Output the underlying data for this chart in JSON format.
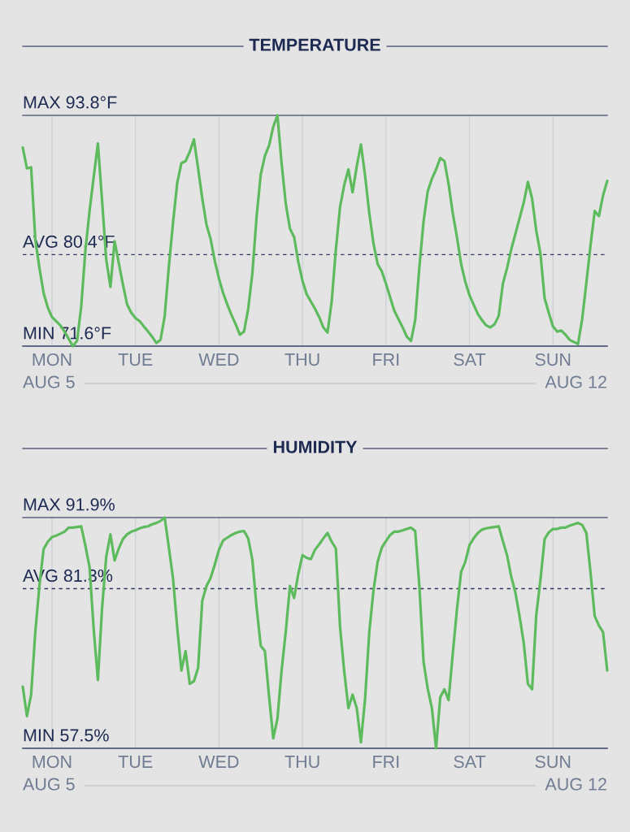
{
  "chart_data": [
    {
      "type": "line",
      "title": "TEMPERATURE",
      "categories": [
        null,
        null,
        null,
        null,
        null,
        null,
        null,
        "MON",
        null,
        null,
        null,
        null,
        null,
        null,
        null,
        null,
        null,
        null,
        null,
        null,
        null,
        null,
        null,
        null,
        null,
        null,
        null,
        "TUE",
        null,
        null,
        null,
        null,
        null,
        null,
        null,
        null,
        null,
        null,
        null,
        null,
        null,
        null,
        null,
        null,
        null,
        null,
        null,
        "WED",
        null,
        null,
        null,
        null,
        null,
        null,
        null,
        null,
        null,
        null,
        null,
        null,
        null,
        null,
        null,
        null,
        null,
        null,
        null,
        "THU",
        null,
        null,
        null,
        null,
        null,
        null,
        null,
        null,
        null,
        null,
        null,
        null,
        null,
        null,
        null,
        null,
        null,
        null,
        null,
        "FRI",
        null,
        null,
        null,
        null,
        null,
        null,
        null,
        null,
        null,
        null,
        null,
        null,
        null,
        null,
        null,
        null,
        null,
        null,
        null,
        "SAT",
        null,
        null,
        null,
        null,
        null,
        null,
        null,
        null,
        null,
        null,
        null,
        null,
        null,
        null,
        null,
        null,
        null,
        null,
        null,
        "SUN",
        null,
        null,
        null,
        null,
        null,
        null,
        null,
        null,
        null,
        null,
        null,
        null,
        null
      ],
      "series": [
        {
          "color": "#5dbb5d",
          "values": [
            90.7,
            88.7,
            88.8,
            81.9,
            79.1,
            76.7,
            75.3,
            74.4,
            74.0,
            73.6,
            73.0,
            72.3,
            71.6,
            72.1,
            75.4,
            80.8,
            84.6,
            87.9,
            91.1,
            85.6,
            79.9,
            77.3,
            81.7,
            79.6,
            77.5,
            75.6,
            74.8,
            74.3,
            74.0,
            73.5,
            73.0,
            72.5,
            71.9,
            72.2,
            74.5,
            79.3,
            83.5,
            87.3,
            89.2,
            89.4,
            90.3,
            91.5,
            88.7,
            85.8,
            83.3,
            81.9,
            79.8,
            78.1,
            76.7,
            75.6,
            74.6,
            73.7,
            72.7,
            73.0,
            75.2,
            78.6,
            84.0,
            88.1,
            89.9,
            90.9,
            92.7,
            93.8,
            89.2,
            85.3,
            82.9,
            82.1,
            79.7,
            77.9,
            76.6,
            75.9,
            75.2,
            74.4,
            73.4,
            72.9,
            75.9,
            80.9,
            85.0,
            87.1,
            88.6,
            86.4,
            88.9,
            91.0,
            88.0,
            84.4,
            81.5,
            79.5,
            78.8,
            77.6,
            76.3,
            75.0,
            74.2,
            73.4,
            72.5,
            72.1,
            74.1,
            79.2,
            83.6,
            86.5,
            87.7,
            88.6,
            89.7,
            89.4,
            87.2,
            84.4,
            82.1,
            79.5,
            77.8,
            76.5,
            75.6,
            74.7,
            74.1,
            73.6,
            73.4,
            73.7,
            74.5,
            77.6,
            79.1,
            80.9,
            82.4,
            83.9,
            85.4,
            87.4,
            85.8,
            82.7,
            80.5,
            76.2,
            74.8,
            73.5,
            73.0,
            73.1,
            72.7,
            72.2,
            72.0,
            71.8,
            74.2,
            77.7,
            81.3,
            84.6,
            84.1,
            86.1,
            87.5
          ]
        }
      ],
      "ylim": [
        71.6,
        93.8
      ],
      "ref_lines": [
        {
          "axis": "y",
          "value": 93.8,
          "label": "MAX 93.8°F",
          "line_style": "solid",
          "color": "#5a637e"
        },
        {
          "axis": "y",
          "value": 80.4,
          "label": "AVG 80.4°F",
          "line_style": "dashed",
          "color": "#2c3760"
        },
        {
          "axis": "y",
          "value": 71.6,
          "label": "MIN 71.6°F",
          "line_style": "solid",
          "color": "#5a637e"
        }
      ],
      "annotations": [
        "AUG 5",
        "AUG 12"
      ],
      "grid": "x",
      "tick_labels": "x",
      "marker": "none",
      "line_style": "solid"
    },
    {
      "type": "line",
      "title": "HUMIDITY",
      "categories": [
        null,
        null,
        null,
        null,
        null,
        null,
        null,
        "MON",
        null,
        null,
        null,
        null,
        null,
        null,
        null,
        null,
        null,
        null,
        null,
        null,
        null,
        null,
        null,
        null,
        null,
        null,
        null,
        "TUE",
        null,
        null,
        null,
        null,
        null,
        null,
        null,
        null,
        null,
        null,
        null,
        null,
        null,
        null,
        null,
        null,
        null,
        null,
        null,
        "WED",
        null,
        null,
        null,
        null,
        null,
        null,
        null,
        null,
        null,
        null,
        null,
        null,
        null,
        null,
        null,
        null,
        null,
        null,
        null,
        "THU",
        null,
        null,
        null,
        null,
        null,
        null,
        null,
        null,
        null,
        null,
        null,
        null,
        null,
        null,
        null,
        null,
        null,
        null,
        null,
        "FRI",
        null,
        null,
        null,
        null,
        null,
        null,
        null,
        null,
        null,
        null,
        null,
        null,
        null,
        null,
        null,
        null,
        null,
        null,
        null,
        "SAT",
        null,
        null,
        null,
        null,
        null,
        null,
        null,
        null,
        null,
        null,
        null,
        null,
        null,
        null,
        null,
        null,
        null,
        null,
        null,
        "SUN",
        null,
        null,
        null,
        null,
        null,
        null,
        null,
        null,
        null,
        null,
        null,
        null,
        null
      ],
      "series": [
        {
          "color": "#5dbb5d",
          "values": [
            66.7,
            62.3,
            65.5,
            74.8,
            81.8,
            87.2,
            88.3,
            89.0,
            89.2,
            89.5,
            89.8,
            90.4,
            90.4,
            90.5,
            90.6,
            87.7,
            84.5,
            75.2,
            67.7,
            78.4,
            86.1,
            89.4,
            85.5,
            87.3,
            88.7,
            89.4,
            89.8,
            90.0,
            90.3,
            90.5,
            90.6,
            90.9,
            91.1,
            91.4,
            91.9,
            87.4,
            82.8,
            75.5,
            69.1,
            72.0,
            67.1,
            67.5,
            69.5,
            79.5,
            81.7,
            82.9,
            84.9,
            87.1,
            88.5,
            88.9,
            89.3,
            89.6,
            89.8,
            89.9,
            88.8,
            85.6,
            78.6,
            72.8,
            72.0,
            65.2,
            59.0,
            61.9,
            69.1,
            74.9,
            81.7,
            79.9,
            83.5,
            86.3,
            85.9,
            85.7,
            87.1,
            87.9,
            88.8,
            89.6,
            88.3,
            87.3,
            75.6,
            69.0,
            63.5,
            65.5,
            63.5,
            58.4,
            64.9,
            74.8,
            81.0,
            85.3,
            87.4,
            88.4,
            89.3,
            89.8,
            89.8,
            90.0,
            90.2,
            90.4,
            89.9,
            81.7,
            70.4,
            66.4,
            63.5,
            57.5,
            65.1,
            66.3,
            64.7,
            71.6,
            78.2,
            83.8,
            85.3,
            87.8,
            88.8,
            89.6,
            90.1,
            90.3,
            90.4,
            90.5,
            90.6,
            88.4,
            86.3,
            83.1,
            80.7,
            77.2,
            73.2,
            67.1,
            66.3,
            77.4,
            82.6,
            88.7,
            89.7,
            90.2,
            90.2,
            90.4,
            90.4,
            90.7,
            90.9,
            91.1,
            90.8,
            89.6,
            83.7,
            77.2,
            75.8,
            74.8,
            69.1
          ]
        }
      ],
      "ylim": [
        57.5,
        91.9
      ],
      "ref_lines": [
        {
          "axis": "y",
          "value": 91.9,
          "label": "MAX 91.9%",
          "line_style": "solid",
          "color": "#5a637e"
        },
        {
          "axis": "y",
          "value": 81.3,
          "label": "AVG 81.3%",
          "line_style": "dashed",
          "color": "#2c3760"
        },
        {
          "axis": "y",
          "value": 57.5,
          "label": "MIN 57.5%",
          "line_style": "solid",
          "color": "#5a637e"
        }
      ],
      "annotations": [
        "AUG 5",
        "AUG 12"
      ],
      "grid": "x",
      "tick_labels": "x",
      "marker": "none",
      "line_style": "solid"
    }
  ]
}
